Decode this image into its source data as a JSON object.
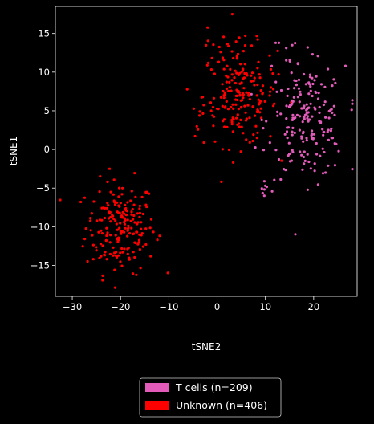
{
  "chart_data": {
    "type": "scatter",
    "title": "",
    "xlabel": "tSNE2",
    "ylabel": "tSNE1",
    "xlim": [
      -33.5,
      29
    ],
    "ylim": [
      -19,
      18.5
    ],
    "xticks": [
      -30,
      -20,
      -10,
      0,
      10,
      20
    ],
    "yticks": [
      -15,
      -10,
      -5,
      0,
      5,
      10,
      15
    ],
    "grid": false,
    "legend_position": "bottom-center (below plot)",
    "series": [
      {
        "name": "T cells (n=209)",
        "color": "#e25bb9",
        "count": 209,
        "clusters": [
          {
            "cx": 18.5,
            "cy": 3.5,
            "sx": 4.0,
            "sy": 3.6,
            "n": 190
          },
          {
            "cx": 15.5,
            "cy": 11.5,
            "sx": 2.0,
            "sy": 2.0,
            "n": 12
          },
          {
            "cx": 10.0,
            "cy": -5.0,
            "sx": 0.8,
            "sy": 1.0,
            "n": 7
          }
        ]
      },
      {
        "name": "Unknown (n=406)",
        "color": "#ff0000",
        "count": 406,
        "clusters": [
          {
            "cx": -20.0,
            "cy": -10.0,
            "sx": 3.6,
            "sy": 3.0,
            "n": 200
          },
          {
            "cx": 4.8,
            "cy": 7.0,
            "sx": 3.8,
            "sy": 3.3,
            "n": 190
          },
          {
            "cx": -1.0,
            "cy": 12.0,
            "sx": 2.0,
            "sy": 2.0,
            "n": 10
          },
          {
            "cx": -4.0,
            "cy": 3.5,
            "sx": 0.6,
            "sy": 1.2,
            "n": 6
          }
        ]
      }
    ]
  }
}
